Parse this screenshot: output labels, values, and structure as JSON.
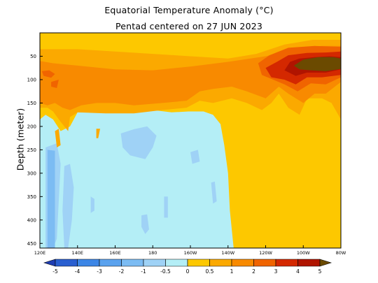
{
  "chart_data": {
    "type": "heatmap",
    "title": "Equatorial Temperature Anomaly (°C)",
    "subtitle": "Pentad centered on 27 JUN 2023",
    "ylabel": "Depth (meter)",
    "xlabel": "",
    "x_ticks": [
      {
        "label": "120E",
        "lon": 120
      },
      {
        "label": "140E",
        "lon": 140
      },
      {
        "label": "160E",
        "lon": 160
      },
      {
        "label": "180",
        "lon": 180
      },
      {
        "label": "160W",
        "lon": 200
      },
      {
        "label": "140W",
        "lon": 220
      },
      {
        "label": "120W",
        "lon": 240
      },
      {
        "label": "100W",
        "lon": 260
      },
      {
        "label": "80W",
        "lon": 280
      }
    ],
    "y_ticks": [
      50,
      100,
      150,
      200,
      250,
      300,
      350,
      400,
      450
    ],
    "xlim": [
      120,
      280
    ],
    "ylim": [
      0,
      460
    ],
    "grid": false,
    "color_scale": {
      "bins": [
        {
          "max": -5,
          "color": "#1f3eb3"
        },
        {
          "min": -5,
          "max": -4,
          "color": "#2a5fd0"
        },
        {
          "min": -4,
          "max": -3,
          "color": "#3c86e6"
        },
        {
          "min": -3,
          "max": -2,
          "color": "#5aa2ee"
        },
        {
          "min": -2,
          "max": -1,
          "color": "#7cbcf3"
        },
        {
          "min": -1,
          "max": -0.5,
          "color": "#9fd2f6"
        },
        {
          "min": -0.5,
          "max": 0,
          "color": "#b4eef6"
        },
        {
          "min": 0,
          "max": 0.5,
          "color": "#fdc800"
        },
        {
          "min": 0.5,
          "max": 1,
          "color": "#fba900"
        },
        {
          "min": 1,
          "max": 2,
          "color": "#f88a00"
        },
        {
          "min": 2,
          "max": 3,
          "color": "#f06400"
        },
        {
          "min": 3,
          "max": 4,
          "color": "#d42800"
        },
        {
          "min": 4,
          "max": 5,
          "color": "#b01400"
        },
        {
          "min": 5,
          "color": "#6b4a00"
        }
      ],
      "tick_labels": [
        "-5",
        "-4",
        "-3",
        "-2",
        "-1",
        "-0.5",
        "0",
        "0.5",
        "1",
        "2",
        "3",
        "4",
        "5"
      ]
    },
    "regions": [
      {
        "anomaly": 0.3,
        "poly": [
          [
            120,
            0
          ],
          [
            280,
            0
          ],
          [
            280,
            460
          ],
          [
            120,
            460
          ]
        ]
      },
      {
        "anomaly": -0.3,
        "poly": [
          [
            120,
            185
          ],
          [
            123,
            175
          ],
          [
            127,
            185
          ],
          [
            131,
            210
          ],
          [
            136,
            200
          ],
          [
            140,
            170
          ],
          [
            150,
            170
          ],
          [
            165,
            168
          ],
          [
            180,
            165
          ],
          [
            190,
            170
          ],
          [
            199,
            168
          ],
          [
            207,
            168
          ],
          [
            212,
            175
          ],
          [
            216,
            195
          ],
          [
            218,
            240
          ],
          [
            220,
            300
          ],
          [
            221,
            380
          ],
          [
            223,
            460
          ],
          [
            120,
            460
          ]
        ]
      },
      {
        "anomaly": -0.8,
        "poly": [
          [
            123,
            245
          ],
          [
            129,
            236
          ],
          [
            131,
            280
          ],
          [
            130,
            360
          ],
          [
            129,
            440
          ],
          [
            127,
            460
          ],
          [
            123,
            460
          ]
        ]
      },
      {
        "anomaly": -0.8,
        "poly": [
          [
            133,
            285
          ],
          [
            136,
            280
          ],
          [
            138,
            330
          ],
          [
            137,
            400
          ],
          [
            135,
            460
          ],
          [
            133,
            460
          ],
          [
            132,
            380
          ]
        ]
      },
      {
        "anomaly": -0.8,
        "poly": [
          [
            147,
            350
          ],
          [
            149,
            355
          ],
          [
            149,
            380
          ],
          [
            147,
            385
          ]
        ]
      },
      {
        "anomaly": -0.8,
        "poly": [
          [
            163,
            215
          ],
          [
            170,
            206
          ],
          [
            177,
            200
          ],
          [
            182,
            220
          ],
          [
            180,
            245
          ],
          [
            176,
            270
          ],
          [
            168,
            262
          ],
          [
            164,
            245
          ]
        ]
      },
      {
        "anomaly": -0.8,
        "poly": [
          [
            174,
            390
          ],
          [
            177,
            388
          ],
          [
            178,
            420
          ],
          [
            176,
            430
          ],
          [
            174,
            415
          ]
        ]
      },
      {
        "anomaly": -0.8,
        "poly": [
          [
            186,
            350
          ],
          [
            188,
            350
          ],
          [
            188,
            395
          ],
          [
            186,
            395
          ]
        ]
      },
      {
        "anomaly": -0.8,
        "poly": [
          [
            200,
            255
          ],
          [
            204,
            250
          ],
          [
            205,
            275
          ],
          [
            201,
            280
          ]
        ]
      },
      {
        "anomaly": -0.8,
        "poly": [
          [
            211,
            320
          ],
          [
            213,
            318
          ],
          [
            214,
            360
          ],
          [
            212,
            365
          ]
        ]
      },
      {
        "anomaly": -1.5,
        "poly": [
          [
            124,
            250
          ],
          [
            128,
            252
          ],
          [
            128,
            460
          ],
          [
            124,
            460
          ]
        ]
      },
      {
        "anomaly": 0.7,
        "poly": [
          [
            120,
            35
          ],
          [
            127,
            35
          ],
          [
            140,
            35
          ],
          [
            160,
            40
          ],
          [
            180,
            45
          ],
          [
            200,
            50
          ],
          [
            220,
            55
          ],
          [
            235,
            45
          ],
          [
            250,
            25
          ],
          [
            265,
            15
          ],
          [
            280,
            15
          ],
          [
            280,
            185
          ],
          [
            275,
            150
          ],
          [
            270,
            140
          ],
          [
            262,
            140
          ],
          [
            258,
            175
          ],
          [
            252,
            160
          ],
          [
            247,
            130
          ],
          [
            243,
            150
          ],
          [
            238,
            165
          ],
          [
            230,
            150
          ],
          [
            222,
            140
          ],
          [
            212,
            150
          ],
          [
            205,
            145
          ],
          [
            198,
            160
          ],
          [
            185,
            165
          ],
          [
            170,
            172
          ],
          [
            155,
            172
          ],
          [
            140,
            170
          ],
          [
            136,
            180
          ],
          [
            135,
            210
          ],
          [
            131,
            190
          ],
          [
            127,
            168
          ],
          [
            124,
            160
          ],
          [
            120,
            160
          ]
        ]
      },
      {
        "anomaly": 0.7,
        "poly": [
          [
            128,
            210
          ],
          [
            130,
            205
          ],
          [
            131,
            240
          ],
          [
            129,
            245
          ]
        ]
      },
      {
        "anomaly": 0.7,
        "poly": [
          [
            150,
            205
          ],
          [
            152,
            205
          ],
          [
            151,
            225
          ],
          [
            150,
            225
          ]
        ]
      },
      {
        "anomaly": 1.5,
        "poly": [
          [
            120,
            60
          ],
          [
            127,
            65
          ],
          [
            140,
            70
          ],
          [
            160,
            78
          ],
          [
            180,
            80
          ],
          [
            200,
            72
          ],
          [
            220,
            62
          ],
          [
            240,
            50
          ],
          [
            255,
            35
          ],
          [
            270,
            28
          ],
          [
            280,
            28
          ],
          [
            280,
            105
          ],
          [
            272,
            130
          ],
          [
            266,
            130
          ],
          [
            260,
            150
          ],
          [
            252,
            130
          ],
          [
            247,
            115
          ],
          [
            240,
            140
          ],
          [
            230,
            125
          ],
          [
            222,
            115
          ],
          [
            212,
            120
          ],
          [
            205,
            125
          ],
          [
            198,
            145
          ],
          [
            185,
            150
          ],
          [
            170,
            155
          ],
          [
            160,
            150
          ],
          [
            150,
            150
          ],
          [
            142,
            155
          ],
          [
            136,
            165
          ],
          [
            132,
            160
          ],
          [
            128,
            150
          ],
          [
            124,
            155
          ],
          [
            120,
            150
          ]
        ]
      },
      {
        "anomaly": 2.5,
        "poly": [
          [
            121,
            82
          ],
          [
            125,
            80
          ],
          [
            128,
            88
          ],
          [
            126,
            96
          ],
          [
            122,
            92
          ]
        ]
      },
      {
        "anomaly": 2.5,
        "poly": [
          [
            126,
            105
          ],
          [
            130,
            100
          ],
          [
            129,
            118
          ],
          [
            126,
            115
          ]
        ]
      },
      {
        "anomaly": 2.5,
        "poly": [
          [
            236,
            65
          ],
          [
            242,
            48
          ],
          [
            252,
            32
          ],
          [
            266,
            28
          ],
          [
            280,
            30
          ],
          [
            280,
            95
          ],
          [
            272,
            110
          ],
          [
            264,
            108
          ],
          [
            257,
            125
          ],
          [
            250,
            110
          ],
          [
            244,
            100
          ],
          [
            238,
            90
          ]
        ]
      },
      {
        "anomaly": 3.5,
        "poly": [
          [
            240,
            75
          ],
          [
            246,
            62
          ],
          [
            252,
            48
          ],
          [
            262,
            43
          ],
          [
            272,
            42
          ],
          [
            280,
            40
          ],
          [
            280,
            90
          ],
          [
            270,
            95
          ],
          [
            262,
            95
          ],
          [
            256,
            110
          ],
          [
            250,
            100
          ],
          [
            243,
            95
          ]
        ]
      },
      {
        "anomaly": 4.5,
        "poly": [
          [
            250,
            80
          ],
          [
            253,
            62
          ],
          [
            258,
            55
          ],
          [
            266,
            52
          ],
          [
            274,
            50
          ],
          [
            280,
            52
          ],
          [
            280,
            78
          ],
          [
            272,
            85
          ],
          [
            262,
            85
          ],
          [
            256,
            92
          ]
        ]
      },
      {
        "anomaly": 5.5,
        "poly": [
          [
            255,
            70
          ],
          [
            260,
            57
          ],
          [
            268,
            52
          ],
          [
            276,
            52
          ],
          [
            280,
            55
          ],
          [
            280,
            77
          ],
          [
            272,
            82
          ],
          [
            264,
            80
          ],
          [
            258,
            78
          ]
        ]
      }
    ]
  }
}
